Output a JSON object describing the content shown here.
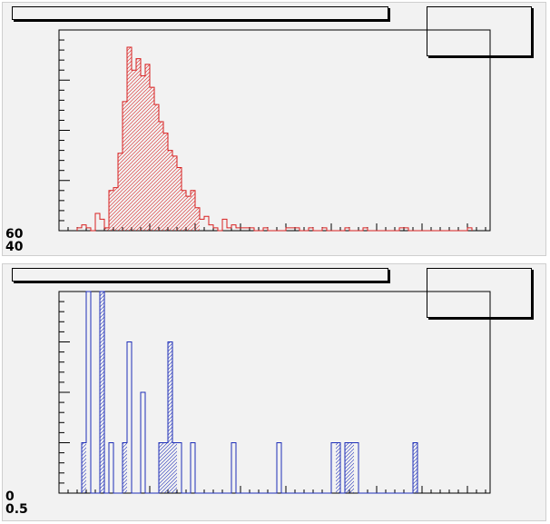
{
  "pads": [
    {
      "title": "",
      "stats": [],
      "y_tick_labels_visible": [
        "60",
        "40"
      ],
      "color": "#d82020",
      "hatch": "diagonal-up",
      "chart_data": {
        "type": "bar",
        "title": "",
        "xlabel": "",
        "ylabel": "",
        "xlim": [
          0,
          95
        ],
        "ylim": [
          0,
          70
        ],
        "bin_width": 1,
        "x": [
          4,
          5,
          6,
          7,
          8,
          9,
          10,
          11,
          12,
          13,
          14,
          15,
          16,
          17,
          18,
          19,
          20,
          21,
          22,
          23,
          24,
          25,
          26,
          27,
          28,
          29,
          30,
          31,
          32,
          33,
          34,
          35,
          36,
          37,
          38,
          39,
          40,
          41,
          42,
          43,
          45,
          47,
          50,
          51,
          52,
          55,
          58,
          63,
          67,
          75,
          76,
          90
        ],
        "values": [
          1,
          2,
          1,
          0,
          6,
          4,
          1,
          14,
          15,
          27,
          45,
          64,
          56,
          60,
          54,
          58,
          50,
          44,
          38,
          34,
          28,
          26,
          22,
          14,
          12,
          14,
          8,
          4,
          5,
          2,
          1,
          0,
          4,
          1,
          2,
          1,
          1,
          1,
          1,
          0,
          1,
          0,
          1,
          1,
          1,
          1,
          1,
          1,
          1,
          1,
          1,
          1
        ],
        "hatch_bins": [
          10,
          11,
          12,
          13,
          14,
          15,
          16,
          17,
          18,
          19,
          20,
          21,
          22,
          23,
          24,
          25,
          26,
          27,
          28,
          29,
          30
        ]
      }
    },
    {
      "title": "",
      "stats": [],
      "y_tick_labels_visible": [
        "0",
        "0.5"
      ],
      "color": "#1f2fb8",
      "hatch": "diagonal-up",
      "chart_data": {
        "type": "bar",
        "title": "",
        "xlabel": "",
        "ylabel": "",
        "xlim": [
          0,
          95
        ],
        "ylim": [
          0,
          8
        ],
        "bin_width": 1,
        "x": [
          5,
          6,
          9,
          11,
          14,
          15,
          18,
          22,
          23,
          24,
          25,
          26,
          29,
          38,
          48,
          60,
          61,
          63,
          64,
          65,
          78
        ],
        "values": [
          2,
          8,
          8,
          2,
          2,
          6,
          4,
          2,
          2,
          6,
          2,
          2,
          2,
          2,
          2,
          2,
          2,
          2,
          2,
          2,
          2
        ],
        "hatch_bins": [
          5,
          9,
          14,
          22,
          23,
          24,
          25,
          61,
          63,
          64,
          78
        ]
      }
    }
  ]
}
